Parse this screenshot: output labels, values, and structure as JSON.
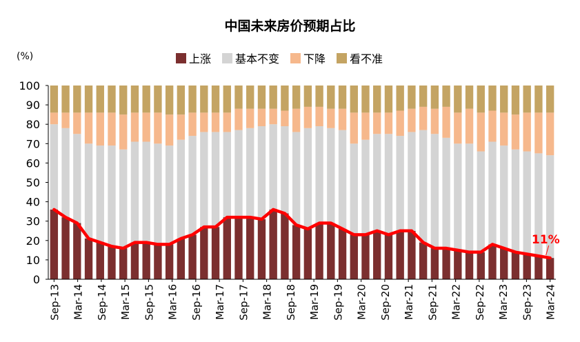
{
  "chart_data": {
    "type": "bar",
    "title": "中国未来房价预期占比",
    "ylabel": "(%)",
    "xlabel": "",
    "ylim": [
      0,
      100
    ],
    "yticks": [
      0,
      10,
      20,
      30,
      40,
      50,
      60,
      70,
      80,
      90,
      100
    ],
    "stacked": true,
    "x_tick_labels": [
      "Sep-13",
      "Mar-14",
      "Sep-14",
      "Mar-15",
      "Sep-15",
      "Mar-16",
      "Sep-16",
      "Mar-17",
      "Sep-17",
      "Mar-18",
      "Sep-18",
      "Mar-19",
      "Sep-19",
      "Mar-20",
      "Sep-20",
      "Mar-21",
      "Sep-21",
      "Mar-22",
      "Sep-22",
      "Mar-23",
      "Sep-23",
      "Mar-24"
    ],
    "legend": [
      "上涨",
      "基本不变",
      "下降",
      "看不准"
    ],
    "colors": {
      "up": "#7b2f2f",
      "flat": "#d4d4d4",
      "down": "#f6b88c",
      "unsure": "#c4a463",
      "line": "#ff0000",
      "annotation": "#ff0000"
    },
    "series": [
      {
        "name": "上涨",
        "values": [
          36,
          32,
          29,
          21,
          19,
          17,
          16,
          19,
          19,
          18,
          18,
          21,
          23,
          27,
          27,
          32,
          32,
          32,
          31,
          36,
          34,
          28,
          26,
          29,
          29,
          26,
          23,
          23,
          25,
          23,
          25,
          25,
          19,
          16,
          16,
          15,
          14,
          14,
          18,
          16,
          14,
          13,
          12,
          11
        ]
      },
      {
        "name": "基本不变",
        "values": [
          44,
          46,
          46,
          49,
          50,
          52,
          51,
          52,
          52,
          52,
          51,
          51,
          51,
          49,
          49,
          44,
          45,
          46,
          48,
          44,
          45,
          48,
          52,
          50,
          49,
          51,
          47,
          49,
          50,
          52,
          49,
          51,
          58,
          59,
          57,
          55,
          56,
          52,
          53,
          53,
          53,
          53,
          53,
          53
        ]
      },
      {
        "name": "下降",
        "values": [
          6,
          8,
          11,
          16,
          17,
          17,
          18,
          15,
          15,
          16,
          16,
          13,
          12,
          10,
          10,
          10,
          11,
          10,
          9,
          8,
          8,
          12,
          11,
          10,
          10,
          11,
          16,
          14,
          11,
          11,
          13,
          12,
          12,
          13,
          16,
          16,
          18,
          20,
          16,
          17,
          18,
          20,
          21,
          22
        ]
      },
      {
        "name": "看不准",
        "values": [
          14,
          14,
          14,
          14,
          14,
          14,
          15,
          14,
          14,
          14,
          15,
          15,
          14,
          14,
          14,
          14,
          12,
          12,
          12,
          12,
          13,
          12,
          11,
          11,
          12,
          12,
          14,
          14,
          14,
          14,
          13,
          12,
          11,
          12,
          11,
          14,
          12,
          14,
          13,
          14,
          15,
          14,
          14,
          14
        ]
      }
    ],
    "line_series": {
      "name": "上涨",
      "values": [
        36,
        32,
        29,
        21,
        19,
        17,
        16,
        19,
        19,
        18,
        18,
        21,
        23,
        27,
        27,
        32,
        32,
        32,
        31,
        36,
        34,
        28,
        26,
        29,
        29,
        26,
        23,
        23,
        25,
        23,
        25,
        25,
        19,
        16,
        16,
        15,
        14,
        14,
        18,
        16,
        14,
        13,
        12,
        11
      ]
    },
    "annotation": "11%"
  }
}
